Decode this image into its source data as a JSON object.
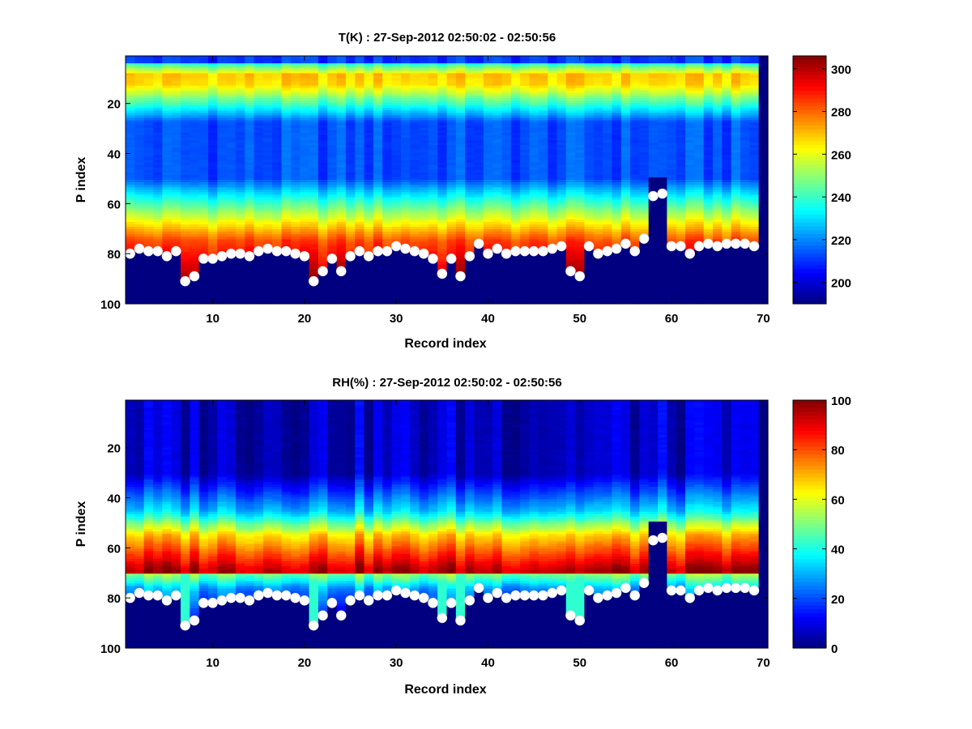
{
  "chart_data": [
    {
      "type": "heatmap",
      "title": "T(K) : 27-Sep-2012 02:50:02 - 02:50:56",
      "xlabel": "Record index",
      "ylabel": "P index",
      "xlim": [
        0.5,
        70.5
      ],
      "ylim": [
        100,
        1
      ],
      "x_ticks": [
        "10",
        "20",
        "30",
        "40",
        "50",
        "60",
        "70"
      ],
      "y_ticks": [
        "20",
        "40",
        "60",
        "80",
        "100"
      ],
      "colorbar": {
        "range": [
          190,
          306
        ],
        "ticks": [
          "200",
          "220",
          "240",
          "260",
          "280",
          "300"
        ]
      },
      "colormap": "jet",
      "records": 70,
      "levels": 100,
      "surface_marker_x": [
        1,
        2,
        3,
        4,
        5,
        6,
        7,
        8,
        9,
        10,
        11,
        12,
        13,
        14,
        15,
        16,
        17,
        18,
        19,
        20,
        21,
        22,
        23,
        24,
        25,
        26,
        27,
        28,
        29,
        30,
        31,
        32,
        33,
        34,
        35,
        36,
        37,
        38,
        39,
        40,
        41,
        42,
        43,
        44,
        45,
        46,
        47,
        48,
        49,
        50,
        51,
        52,
        53,
        54,
        55,
        56,
        57,
        58,
        59,
        60,
        61,
        62,
        63,
        64,
        65,
        66,
        67,
        68,
        69
      ],
      "surface_marker_y": [
        80,
        78,
        79,
        79,
        81,
        79,
        91,
        89,
        82,
        82,
        81,
        80,
        80,
        81,
        79,
        78,
        79,
        79,
        80,
        81,
        91,
        87,
        82,
        87,
        81,
        79,
        81,
        79,
        79,
        77,
        78,
        79,
        80,
        82,
        88,
        82,
        89,
        81,
        76,
        80,
        78,
        80,
        79,
        79,
        79,
        79,
        78,
        77,
        87,
        89,
        77,
        80,
        79,
        78,
        76,
        79,
        74,
        57,
        56,
        77,
        77,
        80,
        77,
        76,
        77,
        76,
        76,
        76,
        77
      ]
    },
    {
      "type": "heatmap",
      "title": "RH(%) : 27-Sep-2012 02:50:02 - 02:50:56",
      "xlabel": "Record index",
      "ylabel": "P index",
      "xlim": [
        0.5,
        70.5
      ],
      "ylim": [
        100,
        1
      ],
      "x_ticks": [
        "10",
        "20",
        "30",
        "40",
        "50",
        "60",
        "70"
      ],
      "y_ticks": [
        "20",
        "40",
        "60",
        "80",
        "100"
      ],
      "colorbar": {
        "range": [
          0,
          100
        ],
        "ticks": [
          "0",
          "20",
          "40",
          "60",
          "80",
          "100"
        ]
      },
      "colormap": "jet",
      "records": 70,
      "levels": 100,
      "surface_marker_x": [
        1,
        2,
        3,
        4,
        5,
        6,
        7,
        8,
        9,
        10,
        11,
        12,
        13,
        14,
        15,
        16,
        17,
        18,
        19,
        20,
        21,
        22,
        23,
        24,
        25,
        26,
        27,
        28,
        29,
        30,
        31,
        32,
        33,
        34,
        35,
        36,
        37,
        38,
        39,
        40,
        41,
        42,
        43,
        44,
        45,
        46,
        47,
        48,
        49,
        50,
        51,
        52,
        53,
        54,
        55,
        56,
        57,
        58,
        59,
        60,
        61,
        62,
        63,
        64,
        65,
        66,
        67,
        68,
        69
      ],
      "surface_marker_y": [
        80,
        78,
        79,
        79,
        81,
        79,
        91,
        89,
        82,
        82,
        81,
        80,
        80,
        81,
        79,
        78,
        79,
        79,
        80,
        81,
        91,
        87,
        82,
        87,
        81,
        79,
        81,
        79,
        79,
        77,
        78,
        79,
        80,
        82,
        88,
        82,
        89,
        81,
        76,
        80,
        78,
        80,
        79,
        79,
        79,
        79,
        78,
        77,
        87,
        89,
        77,
        80,
        79,
        78,
        76,
        79,
        74,
        57,
        56,
        77,
        77,
        80,
        77,
        76,
        77,
        76,
        76,
        76,
        77
      ]
    }
  ]
}
